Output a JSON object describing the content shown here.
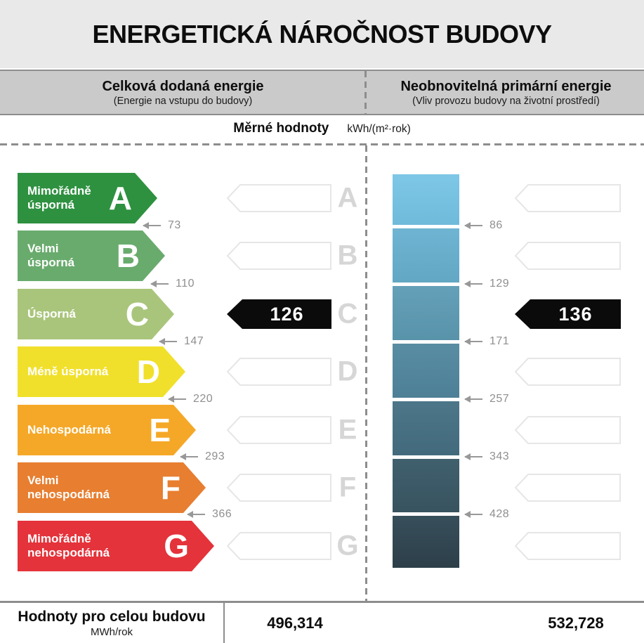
{
  "header": {
    "title": "ENERGETICKÁ NÁROČNOST BUDOVY"
  },
  "columns": {
    "left": {
      "title": "Celková dodaná energie",
      "subtitle": "(Energie na vstupu do budovy)"
    },
    "right": {
      "title": "Neobnovitelná primární energie",
      "subtitle": "(Vliv provozu budovy na životní prostředí)"
    }
  },
  "units": {
    "label": "Měrné hodnoty",
    "unit": "kWh/(m²·rok)"
  },
  "classes": [
    {
      "letter": "A",
      "label": "Mimořádně úsporná",
      "lines": [
        "Mimořádně",
        "úsporná"
      ],
      "color": "#2e9140"
    },
    {
      "letter": "B",
      "label": "Velmi úsporná",
      "lines": [
        "Velmi",
        "úsporná"
      ],
      "color": "#69ab6d"
    },
    {
      "letter": "C",
      "label": "Úsporná",
      "lines": [
        "Úsporná"
      ],
      "color": "#a9c57b"
    },
    {
      "letter": "D",
      "label": "Méně úsporná",
      "lines": [
        "Méně úsporná"
      ],
      "color": "#f1e02b"
    },
    {
      "letter": "E",
      "label": "Nehospodárná",
      "lines": [
        "Nehospodárná"
      ],
      "color": "#f5a827"
    },
    {
      "letter": "F",
      "label": "Velmi nehospodárná",
      "lines": [
        "Velmi",
        "nehospodárná"
      ],
      "color": "#e77e30"
    },
    {
      "letter": "G",
      "label": "Mimořádně nehospodárná",
      "lines": [
        "Mimořádně",
        "nehospodárná"
      ],
      "color": "#e4333a"
    }
  ],
  "left_scale": {
    "thresholds": [
      "73",
      "110",
      "147",
      "220",
      "293",
      "366"
    ],
    "indicator_value": "126",
    "indicator_class": "C"
  },
  "right_scale": {
    "thresholds": [
      "86",
      "129",
      "171",
      "257",
      "343",
      "428"
    ],
    "indicator_value": "136",
    "indicator_class": "C",
    "segment_colors": [
      [
        "#7ec7e7",
        "#6fbada"
      ],
      [
        "#6fb5d3",
        "#62a7c3"
      ],
      [
        "#64a0b8",
        "#5893aa"
      ],
      [
        "#598da3",
        "#4d8096"
      ],
      [
        "#4d7689",
        "#426a7c"
      ],
      [
        "#40606e",
        "#37535f"
      ],
      [
        "#374f5b",
        "#2d3f49"
      ]
    ]
  },
  "footer": {
    "label": "Hodnoty pro celou budovu",
    "unit": "MWh/rok",
    "left_value": "496,314",
    "right_value": "532,728"
  },
  "colors": {
    "indicator": "#0b0b0b",
    "ghost_outline": "#e6e6e6",
    "ghost_fill": "#ffffff",
    "grade_letter": "#d6d6d6",
    "threshold": "#8f8f8f"
  },
  "chart_data": [
    {
      "type": "bar",
      "title": "Celková dodaná energie (Energie na vstupu do budovy) — Měrné hodnoty kWh/(m²·rok)",
      "categories": [
        "A",
        "B",
        "C",
        "D",
        "E",
        "F",
        "G"
      ],
      "category_labels": [
        "Mimořádně úsporná",
        "Velmi úsporná",
        "Úsporná",
        "Méně úsporná",
        "Nehospodárná",
        "Velmi nehospodárná",
        "Mimořádně nehospodárná"
      ],
      "class_upper_boundaries": [
        73,
        110,
        147,
        220,
        293,
        366,
        null
      ],
      "indicator_value": 126,
      "assigned_class": "C",
      "whole_building_value": "496,314 MWh/rok",
      "xlabel": "",
      "ylabel": "kWh/(m²·rok)",
      "legend": false
    },
    {
      "type": "bar",
      "title": "Neobnovitelná primární energie (Vliv provozu budovy na životní prostředí) — Měrné hodnoty kWh/(m²·rok)",
      "categories": [
        "A",
        "B",
        "C",
        "D",
        "E",
        "F",
        "G"
      ],
      "class_upper_boundaries": [
        86,
        129,
        171,
        257,
        343,
        428,
        null
      ],
      "indicator_value": 136,
      "assigned_class": "C",
      "whole_building_value": "532,728 MWh/rok",
      "xlabel": "",
      "ylabel": "kWh/(m²·rok)",
      "legend": false
    }
  ]
}
